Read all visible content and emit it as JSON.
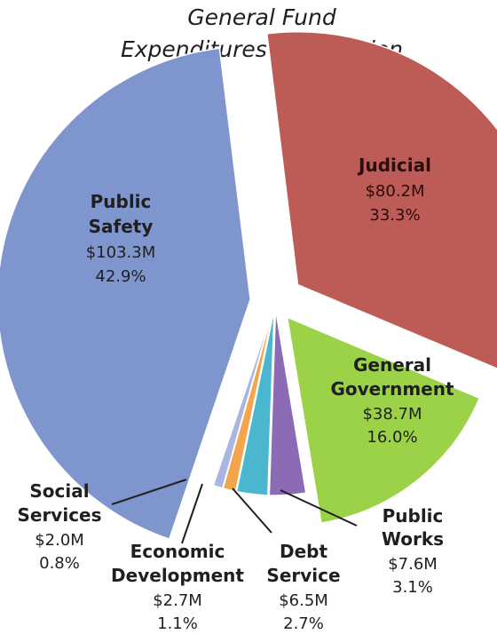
{
  "chart_data": {
    "type": "pie",
    "title_lines": [
      "General Fund",
      "Expenditures by Function"
    ],
    "unit": "$M",
    "slices": [
      {
        "id": "public-safety",
        "name_lines": [
          "Public",
          "Safety"
        ],
        "amount": "$103.3M",
        "value": 103.3,
        "percent": "42.9%",
        "color": "#7f95cd"
      },
      {
        "id": "judicial",
        "name_lines": [
          "Judicial"
        ],
        "amount": "$80.2M",
        "value": 80.2,
        "percent": "33.3%",
        "color": "#bd5b57"
      },
      {
        "id": "general-government",
        "name_lines": [
          "General",
          "Government"
        ],
        "amount": "$38.7M",
        "value": 38.7,
        "percent": "16.0%",
        "color": "#9bd247"
      },
      {
        "id": "public-works",
        "name_lines": [
          "Public",
          "Works"
        ],
        "amount": "$7.6M",
        "value": 7.6,
        "percent": "3.1%",
        "color": "#8b6bb5"
      },
      {
        "id": "debt-service",
        "name_lines": [
          "Debt",
          "Service"
        ],
        "amount": "$6.5M",
        "value": 6.5,
        "percent": "2.7%",
        "color": "#4bb7cf"
      },
      {
        "id": "economic-development",
        "name_lines": [
          "Economic",
          "Development"
        ],
        "amount": "$2.7M",
        "value": 2.7,
        "percent": "1.1%",
        "color": "#f2a54b"
      },
      {
        "id": "social-services",
        "name_lines": [
          "Social",
          "Services"
        ],
        "amount": "$2.0M",
        "value": 2.0,
        "percent": "0.8%",
        "color": "#a8b6e0"
      }
    ]
  }
}
